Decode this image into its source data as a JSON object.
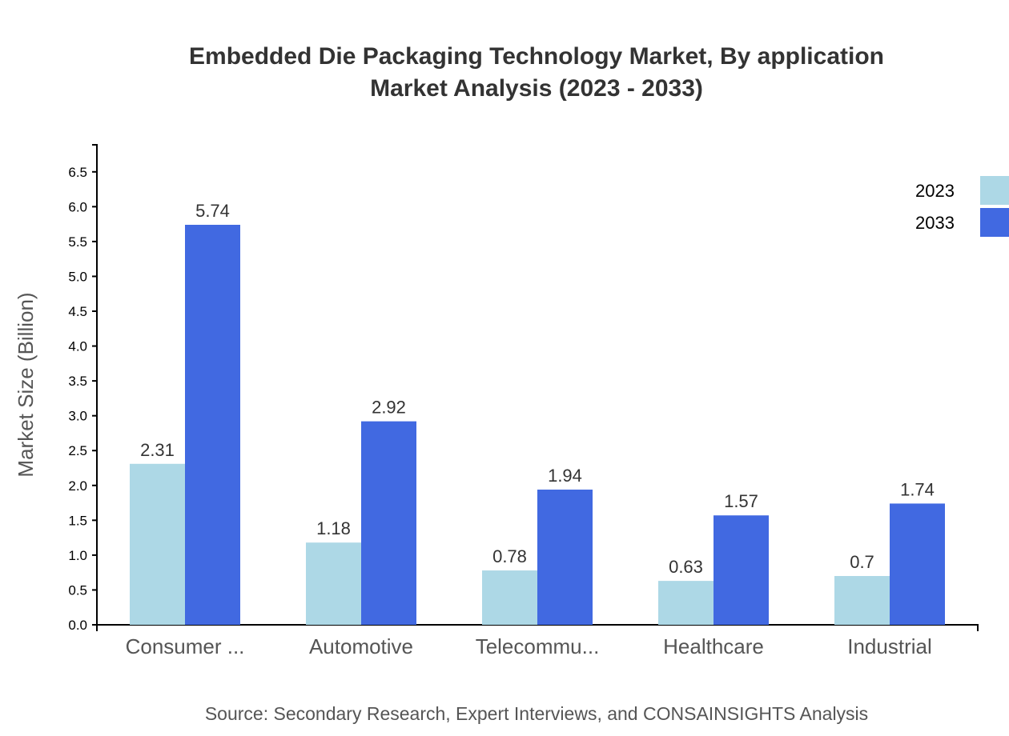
{
  "chart_data": {
    "type": "bar",
    "title": [
      "Embedded Die Packaging Technology Market, By application",
      "Market Analysis (2023 - 2033)"
    ],
    "ylabel": "Market Size (Billion)",
    "xlabel": "",
    "categories": [
      "Consumer ...",
      "Automotive",
      "Telecommu...",
      "Healthcare",
      "Industrial"
    ],
    "series": [
      {
        "name": "2023",
        "color": "#ADD8E6",
        "values": [
          2.31,
          1.18,
          0.78,
          0.63,
          0.7
        ]
      },
      {
        "name": "2033",
        "color": "#4169E1",
        "values": [
          5.74,
          2.92,
          1.94,
          1.57,
          1.74
        ]
      }
    ],
    "ylim": [
      0,
      6.888
    ],
    "yticks": [
      "0.0",
      "0.5",
      "1.0",
      "1.5",
      "2.0",
      "2.5",
      "3.0",
      "3.5",
      "4.0",
      "4.5",
      "5.0",
      "5.5",
      "6.0",
      "6.5"
    ],
    "grid": false,
    "legend": "top-right",
    "source": "Source: Secondary Research, Expert Interviews, and CONSAINSIGHTS Analysis"
  }
}
